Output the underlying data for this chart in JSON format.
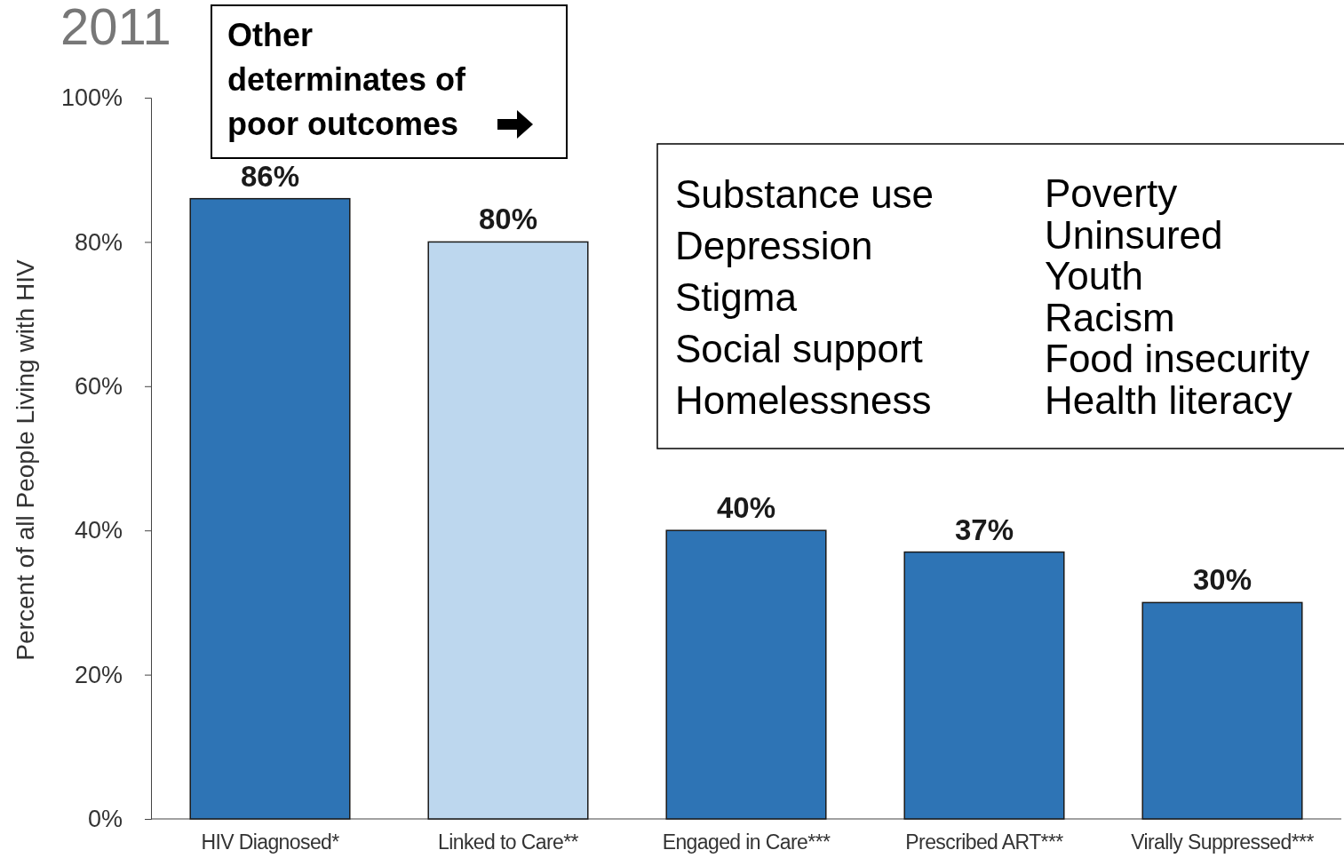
{
  "chart_data": {
    "type": "bar",
    "ylabel": "Percent of all People Living with HIV",
    "categories": [
      "HIV Diagnosed*",
      "Linked to Care**",
      "Engaged in Care***",
      "Prescribed ART***",
      "Virally Suppressed***"
    ],
    "values": [
      86,
      80,
      40,
      37,
      30
    ],
    "colors": [
      "#2e74b5",
      "#bdd7ee",
      "#2e74b5",
      "#2e74b5",
      "#2e74b5"
    ],
    "value_labels": [
      "86%",
      "80%",
      "40%",
      "37%",
      "30%"
    ],
    "ylim": [
      0,
      100
    ],
    "yticks": [
      {
        "value": 0,
        "label": "0%"
      },
      {
        "value": 20,
        "label": "20%"
      },
      {
        "value": 40,
        "label": "40%"
      },
      {
        "value": 60,
        "label": "60%"
      },
      {
        "value": 80,
        "label": "80%"
      },
      {
        "value": 100,
        "label": "100%"
      }
    ],
    "grid": false,
    "annotations": [
      "2011",
      "Other determinates of poor outcomes",
      "Substance use",
      "Depression",
      "Stigma",
      "Social support",
      "Homelessness",
      "Poverty",
      "Uninsured",
      "Youth",
      "Racism",
      "Food insecurity",
      "Health literacy"
    ]
  }
}
